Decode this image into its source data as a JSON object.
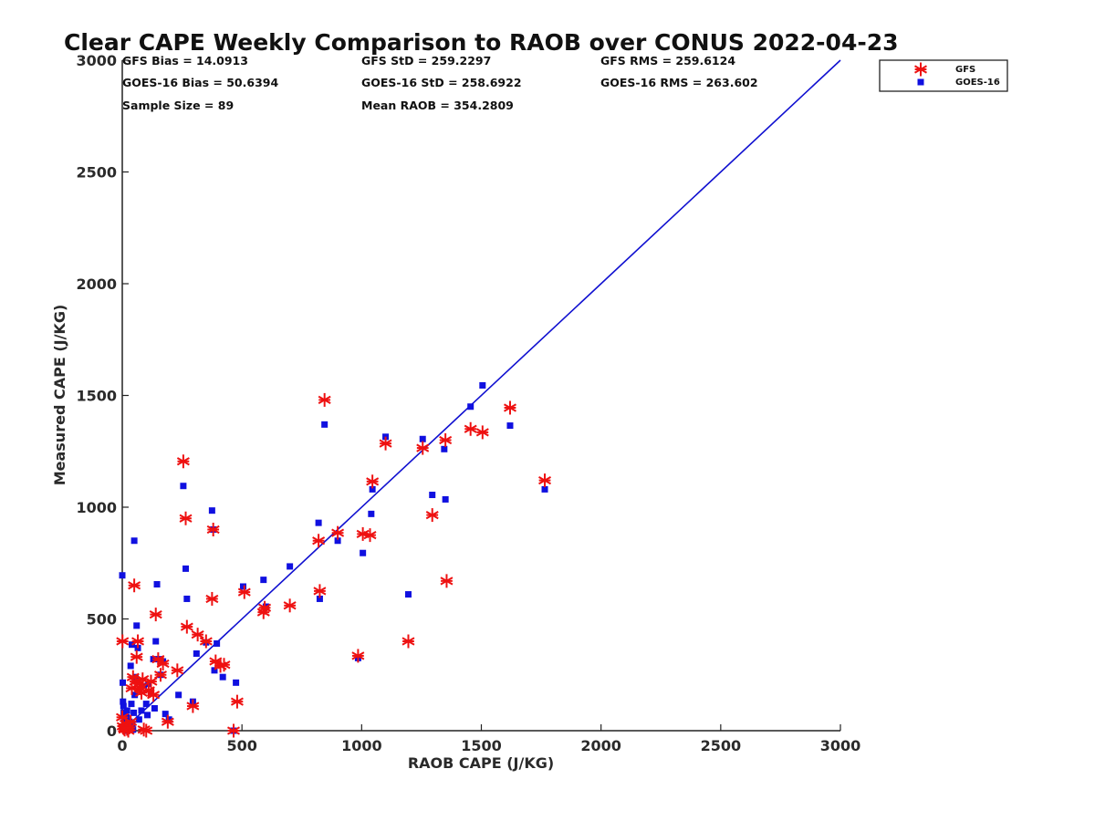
{
  "chart_data": {
    "type": "scatter",
    "title": "Clear CAPE Weekly Comparison to RAOB over CONUS 2022-04-23",
    "xlabel": "RAOB CAPE (J/KG)",
    "ylabel": "Measured CAPE (J/KG)",
    "xlim": [
      0,
      3000
    ],
    "ylim": [
      0,
      3000
    ],
    "xticks": [
      0,
      500,
      1000,
      1500,
      2000,
      2500,
      3000
    ],
    "yticks": [
      0,
      500,
      1000,
      1500,
      2000,
      2500,
      3000
    ],
    "xtick_labels": [
      "0",
      "500",
      "1000",
      "1500",
      "2000",
      "2500",
      "3000"
    ],
    "ytick_labels": [
      "0",
      "500",
      "1000",
      "1500",
      "2000",
      "2500",
      "3000"
    ],
    "grid": false,
    "legend_placement": "top-right",
    "stats": [
      "GFS Bias = 14.0913",
      "GFS StD = 259.2297",
      "GFS RMS = 259.6124",
      "GOES-16 Bias = 50.6394",
      "GOES-16 StD = 258.6922",
      "GOES-16 RMS = 263.602",
      "Sample Size = 89",
      "Mean RAOB = 354.2809"
    ],
    "reference_line": {
      "x": [
        0,
        3000
      ],
      "y": [
        0,
        3000
      ],
      "color": "#1010d0"
    },
    "series": [
      {
        "name": "GFS",
        "marker": "asterisk",
        "color": "#ee1111",
        "points": [
          [
            1,
            400
          ],
          [
            0,
            60
          ],
          [
            3,
            20
          ],
          [
            8,
            10
          ],
          [
            10,
            5
          ],
          [
            15,
            30
          ],
          [
            20,
            8
          ],
          [
            25,
            0
          ],
          [
            30,
            15
          ],
          [
            35,
            40
          ],
          [
            40,
            190
          ],
          [
            45,
            240
          ],
          [
            50,
            650
          ],
          [
            55,
            220
          ],
          [
            60,
            330
          ],
          [
            65,
            400
          ],
          [
            70,
            210
          ],
          [
            75,
            190
          ],
          [
            80,
            170
          ],
          [
            85,
            230
          ],
          [
            90,
            5
          ],
          [
            100,
            0
          ],
          [
            110,
            180
          ],
          [
            120,
            220
          ],
          [
            130,
            160
          ],
          [
            140,
            520
          ],
          [
            150,
            320
          ],
          [
            160,
            250
          ],
          [
            170,
            300
          ],
          [
            190,
            40
          ],
          [
            230,
            270
          ],
          [
            255,
            1205
          ],
          [
            265,
            950
          ],
          [
            270,
            465
          ],
          [
            295,
            110
          ],
          [
            315,
            430
          ],
          [
            350,
            400
          ],
          [
            375,
            590
          ],
          [
            380,
            900
          ],
          [
            390,
            310
          ],
          [
            410,
            290
          ],
          [
            425,
            295
          ],
          [
            480,
            130
          ],
          [
            465,
            0
          ],
          [
            510,
            620
          ],
          [
            590,
            530
          ],
          [
            595,
            550
          ],
          [
            700,
            560
          ],
          [
            820,
            850
          ],
          [
            825,
            625
          ],
          [
            845,
            1480
          ],
          [
            900,
            885
          ],
          [
            985,
            335
          ],
          [
            1005,
            880
          ],
          [
            1035,
            875
          ],
          [
            1045,
            1115
          ],
          [
            1100,
            1285
          ],
          [
            1195,
            400
          ],
          [
            1255,
            1265
          ],
          [
            1295,
            965
          ],
          [
            1350,
            1300
          ],
          [
            1355,
            670
          ],
          [
            1455,
            1350
          ],
          [
            1505,
            1335
          ],
          [
            1620,
            1445
          ],
          [
            1765,
            1120
          ]
        ]
      },
      {
        "name": "GOES-16",
        "marker": "square",
        "color": "#1010e0",
        "points": [
          [
            0,
            695
          ],
          [
            2,
            215
          ],
          [
            3,
            130
          ],
          [
            5,
            110
          ],
          [
            6,
            80
          ],
          [
            8,
            50
          ],
          [
            10,
            30
          ],
          [
            12,
            10
          ],
          [
            15,
            0
          ],
          [
            18,
            60
          ],
          [
            20,
            90
          ],
          [
            25,
            20
          ],
          [
            30,
            40
          ],
          [
            35,
            290
          ],
          [
            38,
            120
          ],
          [
            40,
            385
          ],
          [
            42,
            30
          ],
          [
            45,
            5
          ],
          [
            48,
            80
          ],
          [
            50,
            850
          ],
          [
            52,
            160
          ],
          [
            55,
            240
          ],
          [
            60,
            470
          ],
          [
            65,
            370
          ],
          [
            70,
            50
          ],
          [
            80,
            90
          ],
          [
            90,
            200
          ],
          [
            100,
            120
          ],
          [
            105,
            70
          ],
          [
            110,
            210
          ],
          [
            120,
            170
          ],
          [
            130,
            320
          ],
          [
            135,
            100
          ],
          [
            140,
            400
          ],
          [
            145,
            655
          ],
          [
            155,
            320
          ],
          [
            160,
            250
          ],
          [
            170,
            310
          ],
          [
            180,
            75
          ],
          [
            195,
            50
          ],
          [
            235,
            160
          ],
          [
            255,
            1095
          ],
          [
            265,
            725
          ],
          [
            270,
            590
          ],
          [
            295,
            130
          ],
          [
            310,
            345
          ],
          [
            350,
            395
          ],
          [
            375,
            985
          ],
          [
            380,
            900
          ],
          [
            385,
            270
          ],
          [
            395,
            390
          ],
          [
            420,
            240
          ],
          [
            475,
            215
          ],
          [
            465,
            0
          ],
          [
            505,
            645
          ],
          [
            590,
            675
          ],
          [
            600,
            555
          ],
          [
            700,
            735
          ],
          [
            820,
            930
          ],
          [
            825,
            590
          ],
          [
            845,
            1370
          ],
          [
            900,
            850
          ],
          [
            985,
            325
          ],
          [
            1005,
            795
          ],
          [
            1040,
            970
          ],
          [
            1045,
            1080
          ],
          [
            1100,
            1315
          ],
          [
            1195,
            610
          ],
          [
            1255,
            1305
          ],
          [
            1295,
            1055
          ],
          [
            1345,
            1260
          ],
          [
            1350,
            1035
          ],
          [
            1455,
            1450
          ],
          [
            1505,
            1545
          ],
          [
            1620,
            1365
          ],
          [
            1765,
            1080
          ]
        ]
      }
    ]
  }
}
